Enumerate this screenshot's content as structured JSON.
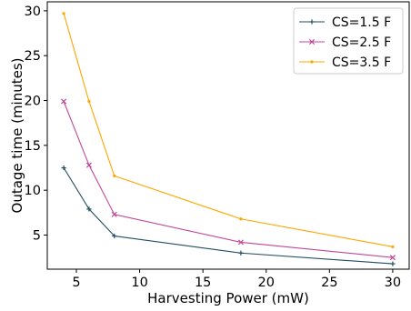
{
  "chart_data": {
    "type": "line",
    "xlabel": "Harvesting Power (mW)",
    "ylabel": "Outage time (minutes)",
    "x": [
      4,
      6,
      8,
      18,
      30
    ],
    "xlim": [
      2.7,
      31.3
    ],
    "ylim": [
      1.2,
      31.0
    ],
    "xticks": [
      5,
      10,
      15,
      20,
      25,
      30
    ],
    "yticks": [
      5,
      10,
      15,
      20,
      25,
      30
    ],
    "grid": false,
    "legend_position": "top-right",
    "series": [
      {
        "name": "CS=1.5 F",
        "color": "#1f4e5f",
        "marker": "+",
        "values": [
          12.5,
          7.9,
          4.9,
          3.0,
          1.8
        ]
      },
      {
        "name": "CS=2.5 F",
        "color": "#c0479a",
        "marker": "x",
        "values": [
          19.9,
          12.8,
          7.3,
          4.2,
          2.5
        ]
      },
      {
        "name": "CS=3.5 F",
        "color": "#ffa500",
        "marker": ".",
        "values": [
          29.7,
          19.9,
          11.6,
          6.8,
          3.7
        ]
      }
    ]
  }
}
